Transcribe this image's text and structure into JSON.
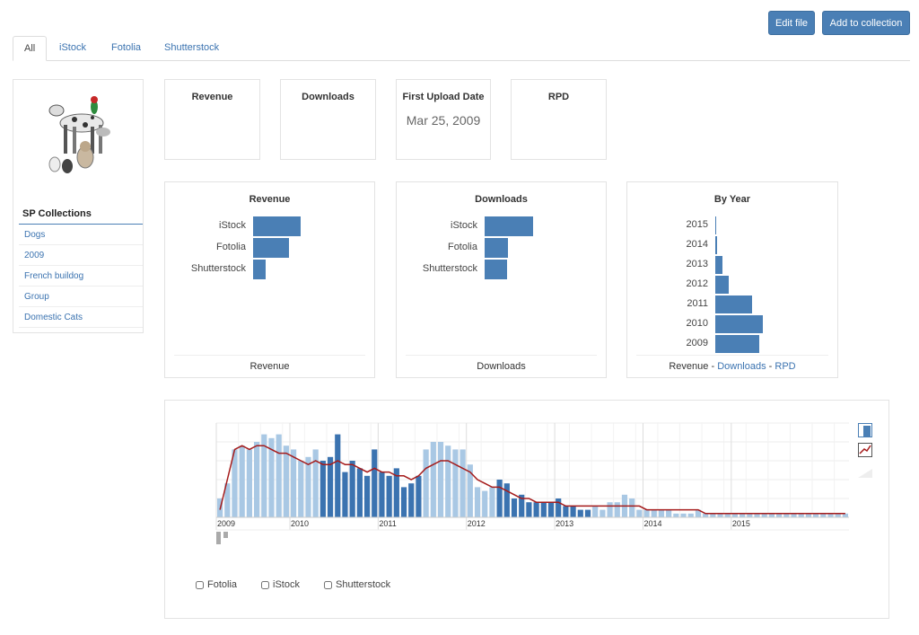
{
  "toolbar": {
    "edit_label": "Edit file",
    "add_label": "Add to collection"
  },
  "tabs": [
    {
      "label": "All",
      "active": true
    },
    {
      "label": "iStock"
    },
    {
      "label": "Fotolia"
    },
    {
      "label": "Shutterstock"
    }
  ],
  "sidebar": {
    "title": "SP Collections",
    "items": [
      "Dogs",
      "2009",
      "French buildog",
      "Group",
      "Domestic Cats"
    ]
  },
  "stats": {
    "revenue_title": "Revenue",
    "downloads_title": "Downloads",
    "first_upload_title": "First Upload Date",
    "first_upload_value": "Mar 25, 2009",
    "rpd_title": "RPD"
  },
  "revenue_card": {
    "title": "Revenue",
    "labels": [
      "iStock",
      "Fotolia",
      "Shutterstock"
    ],
    "values": [
      53,
      40,
      14
    ],
    "footer": "Revenue"
  },
  "downloads_card": {
    "title": "Downloads",
    "labels": [
      "iStock",
      "Fotolia",
      "Shutterstock"
    ],
    "values": [
      54,
      26,
      25
    ],
    "footer": "Downloads"
  },
  "year_card": {
    "title": "By Year",
    "labels": [
      "2015",
      "2014",
      "2013",
      "2012",
      "2011",
      "2010",
      "2009"
    ],
    "values": [
      1,
      2,
      8,
      15,
      41,
      53,
      49
    ],
    "footer_prefix": "Revenue",
    "sep": " - ",
    "footer_link1": "Downloads",
    "footer_link2": "RPD"
  },
  "timeline": {
    "year_labels": [
      "2009",
      "2010",
      "2011",
      "2012",
      "2013",
      "2014",
      "2015"
    ]
  },
  "checkboxes": [
    "Fotolia",
    "iStock",
    "Shutterstock"
  ],
  "colors": {
    "accent": "#4a7fb5",
    "light_bar": "#a9c8e4",
    "dark_bar": "#3b73b0",
    "line": "#a51b1b"
  },
  "chart_data": {
    "type": "bar",
    "x_start": "2009-03",
    "x_unit": "month",
    "values": [
      5,
      9,
      18,
      19,
      18,
      20,
      22,
      21,
      22,
      19,
      18,
      15,
      16,
      18,
      15,
      16,
      22,
      12,
      15,
      13,
      11,
      18,
      12,
      11,
      13,
      8,
      9,
      11,
      18,
      20,
      20,
      19,
      18,
      18,
      14,
      8,
      7,
      8,
      10,
      9,
      5,
      6,
      4,
      4,
      4,
      4,
      5,
      3,
      3,
      2,
      2,
      3,
      2,
      4,
      4,
      6,
      5,
      2,
      2,
      2,
      2,
      2,
      1,
      1,
      1,
      2,
      1,
      1,
      1,
      1,
      1,
      1,
      1,
      1,
      1,
      1,
      1,
      1,
      1,
      1,
      1,
      1,
      1,
      1,
      1,
      1
    ],
    "line": [
      2,
      10,
      18,
      19,
      18,
      19,
      19,
      18,
      17,
      17,
      16,
      15,
      14,
      15,
      14,
      14,
      15,
      14,
      14,
      13,
      12,
      13,
      12,
      12,
      11,
      11,
      10,
      11,
      13,
      14,
      15,
      15,
      14,
      13,
      12,
      10,
      9,
      8,
      8,
      7,
      6,
      5,
      5,
      4,
      4,
      4,
      4,
      3,
      3,
      3,
      3,
      3,
      3,
      3,
      3,
      3,
      3,
      3,
      2,
      2,
      2,
      2,
      2,
      2,
      2,
      2,
      1,
      1,
      1,
      1,
      1,
      1,
      1,
      1,
      1,
      1,
      1,
      1,
      1,
      1,
      1,
      1,
      1,
      1,
      1,
      1
    ],
    "dark_months": [
      14,
      15,
      16,
      17,
      18,
      19,
      20,
      21,
      22,
      23,
      24,
      25,
      26,
      27,
      38,
      39,
      40,
      41,
      42,
      43,
      44,
      45,
      46,
      47,
      48,
      49,
      50
    ]
  }
}
